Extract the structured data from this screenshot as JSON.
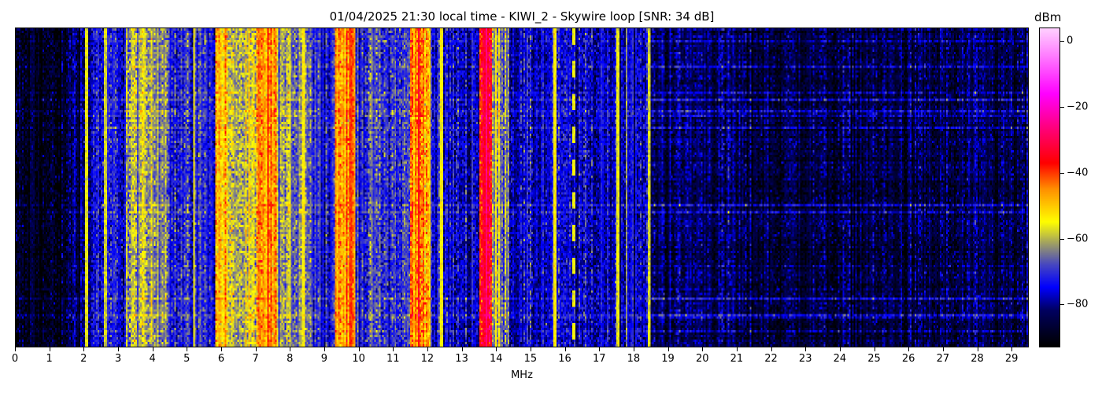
{
  "chart_data": {
    "type": "heatmap",
    "title": "01/04/2025 21:30 local time - KIWI_2 - Skywire loop [SNR: 34 dB]",
    "xlabel": "MHz",
    "ylabel": "",
    "xlim": [
      0,
      29.5
    ],
    "x_ticks": [
      "0",
      "1",
      "2",
      "3",
      "4",
      "5",
      "6",
      "7",
      "8",
      "9",
      "10",
      "11",
      "12",
      "13",
      "14",
      "15",
      "16",
      "17",
      "18",
      "19",
      "20",
      "21",
      "22",
      "23",
      "24",
      "25",
      "26",
      "27",
      "28",
      "29"
    ],
    "colorbar": {
      "label": "dBm",
      "range": [
        -93,
        4
      ],
      "ticks": [
        "0",
        "−20",
        "−40",
        "−60",
        "−80"
      ],
      "tick_values": [
        0,
        -20,
        -40,
        -60,
        -80
      ],
      "colormap": [
        {
          "value": -93,
          "color": "#000000"
        },
        {
          "value": -82,
          "color": "#000060"
        },
        {
          "value": -75,
          "color": "#0000ff"
        },
        {
          "value": -68,
          "color": "#4848c0"
        },
        {
          "value": -62,
          "color": "#9a9a6a"
        },
        {
          "value": -55,
          "color": "#ffff00"
        },
        {
          "value": -45,
          "color": "#ff9000"
        },
        {
          "value": -37,
          "color": "#ff0000"
        },
        {
          "value": -26,
          "color": "#ff0080"
        },
        {
          "value": -16,
          "color": "#ff00ff"
        },
        {
          "value": -4,
          "color": "#ff80ff"
        },
        {
          "value": 4,
          "color": "#ffd0ff"
        }
      ]
    },
    "band_levels_dbm": [
      {
        "from": 0.0,
        "to": 1.5,
        "level": -90
      },
      {
        "from": 1.5,
        "to": 2.2,
        "level": -82
      },
      {
        "from": 2.2,
        "to": 3.2,
        "level": -74
      },
      {
        "from": 3.2,
        "to": 4.5,
        "level": -62
      },
      {
        "from": 4.5,
        "to": 5.8,
        "level": -72
      },
      {
        "from": 5.8,
        "to": 6.2,
        "level": -50
      },
      {
        "from": 6.2,
        "to": 7.0,
        "level": -60
      },
      {
        "from": 7.0,
        "to": 7.6,
        "level": -48
      },
      {
        "from": 7.6,
        "to": 8.6,
        "level": -63
      },
      {
        "from": 8.6,
        "to": 9.3,
        "level": -72
      },
      {
        "from": 9.3,
        "to": 9.9,
        "level": -47
      },
      {
        "from": 9.9,
        "to": 11.5,
        "level": -70
      },
      {
        "from": 11.5,
        "to": 12.1,
        "level": -44
      },
      {
        "from": 12.1,
        "to": 13.5,
        "level": -76
      },
      {
        "from": 13.5,
        "to": 13.9,
        "level": -35
      },
      {
        "from": 13.9,
        "to": 14.4,
        "level": -62
      },
      {
        "from": 14.4,
        "to": 18.5,
        "level": -77
      },
      {
        "from": 18.5,
        "to": 21.0,
        "level": -83
      },
      {
        "from": 21.0,
        "to": 29.5,
        "level": -86
      }
    ],
    "carriers_mhz": [
      {
        "freq": 2.05,
        "level": -56
      },
      {
        "freq": 2.62,
        "level": -58
      },
      {
        "freq": 5.2,
        "level": -55
      },
      {
        "freq": 7.35,
        "level": -38
      },
      {
        "freq": 8.4,
        "level": -54
      },
      {
        "freq": 9.75,
        "level": -40
      },
      {
        "freq": 11.75,
        "level": -36
      },
      {
        "freq": 12.4,
        "level": -55
      },
      {
        "freq": 13.72,
        "level": -26
      },
      {
        "freq": 15.7,
        "level": -54
      },
      {
        "freq": 16.25,
        "level": -56,
        "intermittent": true
      },
      {
        "freq": 17.55,
        "level": -56
      },
      {
        "freq": 17.8,
        "level": -62
      },
      {
        "freq": 18.45,
        "level": -58
      }
    ]
  }
}
